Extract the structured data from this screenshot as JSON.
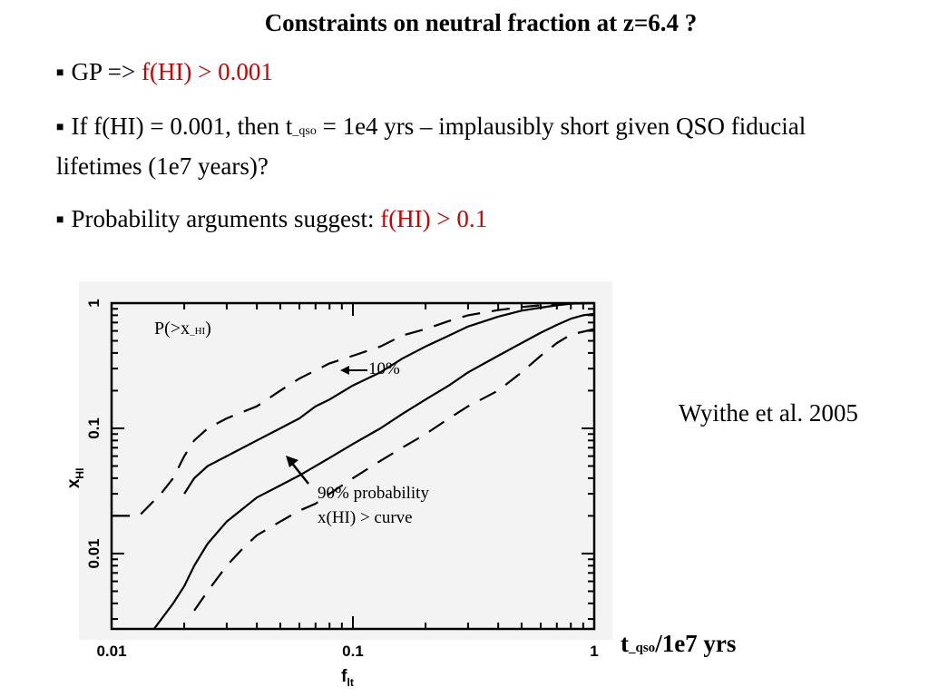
{
  "slide": {
    "title": "Constraints on neutral fraction at z=6.4 ?",
    "bullet1": {
      "prefix": "GP => ",
      "highlight": "f(HI) > 0.001"
    },
    "bullet2": {
      "part1": "If f(HI) = 0.001, then  t",
      "sub": "_qso",
      "part2": " = 1e4 yrs – implausibly short given QSO fiducial lifetimes (1e7 years)?"
    },
    "bullet3": {
      "prefix": "Probability arguments suggest:  ",
      "highlight": "f(HI) > 0.1"
    },
    "citation": "Wyithe et al. 2005",
    "xunit": {
      "t": "t",
      "sub": "_qso",
      "rest": "/1e7 yrs"
    },
    "colors": {
      "text": "#000000",
      "highlight": "#cc0000"
    }
  },
  "chart_data": {
    "type": "line",
    "xscale": "log",
    "yscale": "log",
    "xlim": [
      0.01,
      1
    ],
    "ylim": [
      0.0025,
      1
    ],
    "xlabel": "f_lt",
    "ylabel": "x_HI",
    "xticks": [
      "0.01",
      "0.1",
      "1"
    ],
    "yticks": [
      "0.01",
      "0.1",
      "1"
    ],
    "annotations": {
      "p_label": "P(>x",
      "p_sub": "_HI",
      "p_end": ")",
      "ten_percent": "10%",
      "ninety_line1": "90% probability",
      "ninety_line2": "x(HI) > curve"
    },
    "series": [
      {
        "style": "solid",
        "x": [
          0.02,
          0.022,
          0.025,
          0.03,
          0.04,
          0.05,
          0.06,
          0.07,
          0.08,
          0.1,
          0.13,
          0.16,
          0.2,
          0.25,
          0.3,
          0.4,
          0.5,
          0.6,
          0.7,
          0.8,
          1.0
        ],
        "y": [
          0.03,
          0.04,
          0.05,
          0.06,
          0.08,
          0.1,
          0.12,
          0.15,
          0.17,
          0.22,
          0.28,
          0.36,
          0.45,
          0.55,
          0.65,
          0.78,
          0.87,
          0.92,
          0.96,
          0.99,
          1.0
        ]
      },
      {
        "style": "solid",
        "x": [
          0.015,
          0.018,
          0.02,
          0.022,
          0.025,
          0.03,
          0.04,
          0.05,
          0.06,
          0.08,
          0.1,
          0.13,
          0.16,
          0.2,
          0.25,
          0.3,
          0.4,
          0.5,
          0.6,
          0.7,
          0.8,
          0.9,
          1.0
        ],
        "y": [
          0.0025,
          0.004,
          0.0055,
          0.008,
          0.012,
          0.018,
          0.028,
          0.035,
          0.042,
          0.058,
          0.075,
          0.1,
          0.13,
          0.17,
          0.22,
          0.28,
          0.38,
          0.48,
          0.58,
          0.67,
          0.75,
          0.8,
          0.82
        ]
      },
      {
        "style": "dashed",
        "x": [
          0.01,
          0.013,
          0.016,
          0.018,
          0.02,
          0.022,
          0.025,
          0.03,
          0.04,
          0.05,
          0.06,
          0.08,
          0.1,
          0.13,
          0.16,
          0.2,
          0.25,
          0.3,
          0.4,
          0.5,
          0.6,
          0.7,
          0.8,
          1.0
        ],
        "y": [
          0.02,
          0.02,
          0.03,
          0.04,
          0.06,
          0.08,
          0.1,
          0.12,
          0.15,
          0.2,
          0.25,
          0.33,
          0.38,
          0.45,
          0.55,
          0.62,
          0.72,
          0.8,
          0.88,
          0.93,
          0.96,
          0.98,
          1.0,
          1.0
        ]
      },
      {
        "style": "dashed",
        "x": [
          0.022,
          0.025,
          0.03,
          0.035,
          0.04,
          0.05,
          0.06,
          0.07,
          0.08,
          0.1,
          0.13,
          0.16,
          0.2,
          0.25,
          0.3,
          0.4,
          0.5,
          0.6,
          0.7,
          0.8,
          1.0
        ],
        "y": [
          0.0035,
          0.005,
          0.008,
          0.011,
          0.014,
          0.018,
          0.022,
          0.025,
          0.03,
          0.04,
          0.055,
          0.07,
          0.09,
          0.12,
          0.15,
          0.2,
          0.28,
          0.38,
          0.48,
          0.56,
          0.62
        ]
      }
    ]
  }
}
